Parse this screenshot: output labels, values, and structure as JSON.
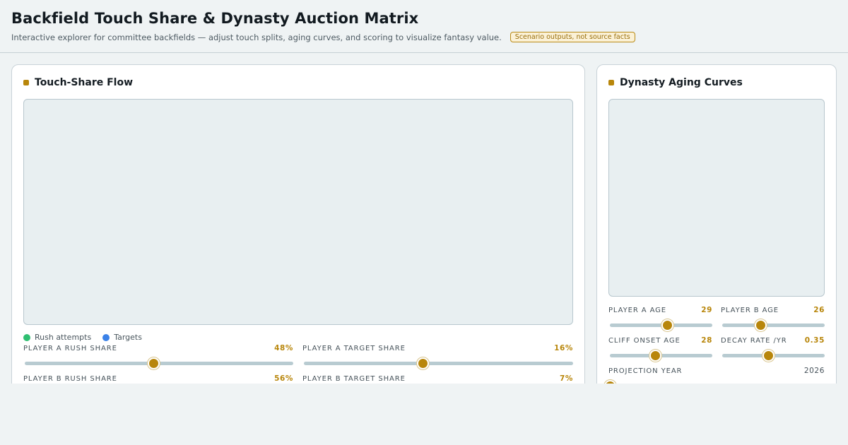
{
  "header": {
    "title": "Backfield Touch Share & Dynasty Auction Matrix",
    "subtitle": "Interactive explorer for committee backfields — adjust touch splits, aging curves, and scoring to visualize fantasy value.",
    "badge": "Scenario outputs, not source facts"
  },
  "touch_share": {
    "title": "Touch-Share Flow",
    "legend": [
      {
        "label": "Rush attempts",
        "color": "#2fbf71"
      },
      {
        "label": "Targets",
        "color": "#3b82e8"
      }
    ],
    "controls": [
      {
        "label": "Player A rush share",
        "value": "48%",
        "fraction": 0.48
      },
      {
        "label": "Player A target share",
        "value": "16%",
        "fraction": 0.44
      },
      {
        "label": "Player B rush share",
        "value": "56%",
        "fraction": 0.56
      },
      {
        "label": "Player B target share",
        "value": "7%",
        "fraction": 0.2
      }
    ]
  },
  "aging": {
    "title": "Dynasty Aging Curves",
    "controls": [
      {
        "label": "Player A age",
        "value": "29",
        "fraction": 0.56
      },
      {
        "label": "Player B age",
        "value": "26",
        "fraction": 0.37
      },
      {
        "label": "Cliff onset age",
        "value": "28",
        "fraction": 0.44
      },
      {
        "label": "Decay rate /yr",
        "value": "0.35",
        "fraction": 0.45
      },
      {
        "label": "Projection year",
        "value": "2026",
        "fraction": 0.0
      }
    ]
  },
  "colors": {
    "accent": "#b8860b",
    "plot_bg": "#e8eff1"
  }
}
